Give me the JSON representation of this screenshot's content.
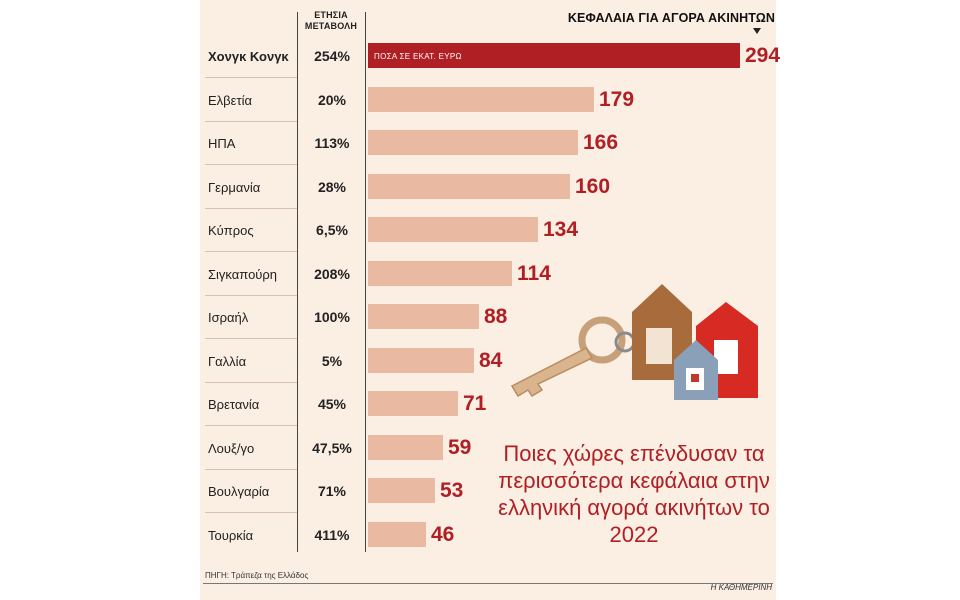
{
  "chart_data": {
    "type": "bar",
    "orientation": "horizontal",
    "title": "ΚΕΦΑΛΑΙΑ ΓΙΑ ΑΓΟΡΑ ΑΚΙΝΗΤΩΝ",
    "unit_label": "ΠΟΣΑ ΣΕ ΕΚΑΤ. ΕΥΡΩ",
    "change_column_header": "ΕΤΗΣΙΑ ΜΕΤΑΒΟΛΗ",
    "categories": [
      "Χονγκ Κονγκ",
      "Ελβετία",
      "ΗΠΑ",
      "Γερμανία",
      "Κύπρος",
      "Σιγκαπούρη",
      "Ισραήλ",
      "Γαλλία",
      "Βρετανία",
      "Λουξ/γο",
      "Βουλγαρία",
      "Τουρκία"
    ],
    "values": [
      294,
      179,
      166,
      160,
      134,
      114,
      88,
      84,
      71,
      59,
      53,
      46
    ],
    "annual_change": [
      "254%",
      "20%",
      "113%",
      "28%",
      "6,5%",
      "208%",
      "100%",
      "5%",
      "45%",
      "47,5%",
      "71%",
      "411%"
    ],
    "colors": {
      "highlight": "#b01f24",
      "bar": "#e9b9a1",
      "value_text": "#b01f24"
    }
  },
  "headline": "Ποιες χώρες επένδυσαν τα περισσότερα κεφάλαια στην ελληνική αγορά ακινήτων το 2022",
  "source": "ΠΗΓΗ: Τράπεζα της Ελλάδος",
  "credit": "Η ΚΑΘΗΜΕΡΙΝΗ"
}
